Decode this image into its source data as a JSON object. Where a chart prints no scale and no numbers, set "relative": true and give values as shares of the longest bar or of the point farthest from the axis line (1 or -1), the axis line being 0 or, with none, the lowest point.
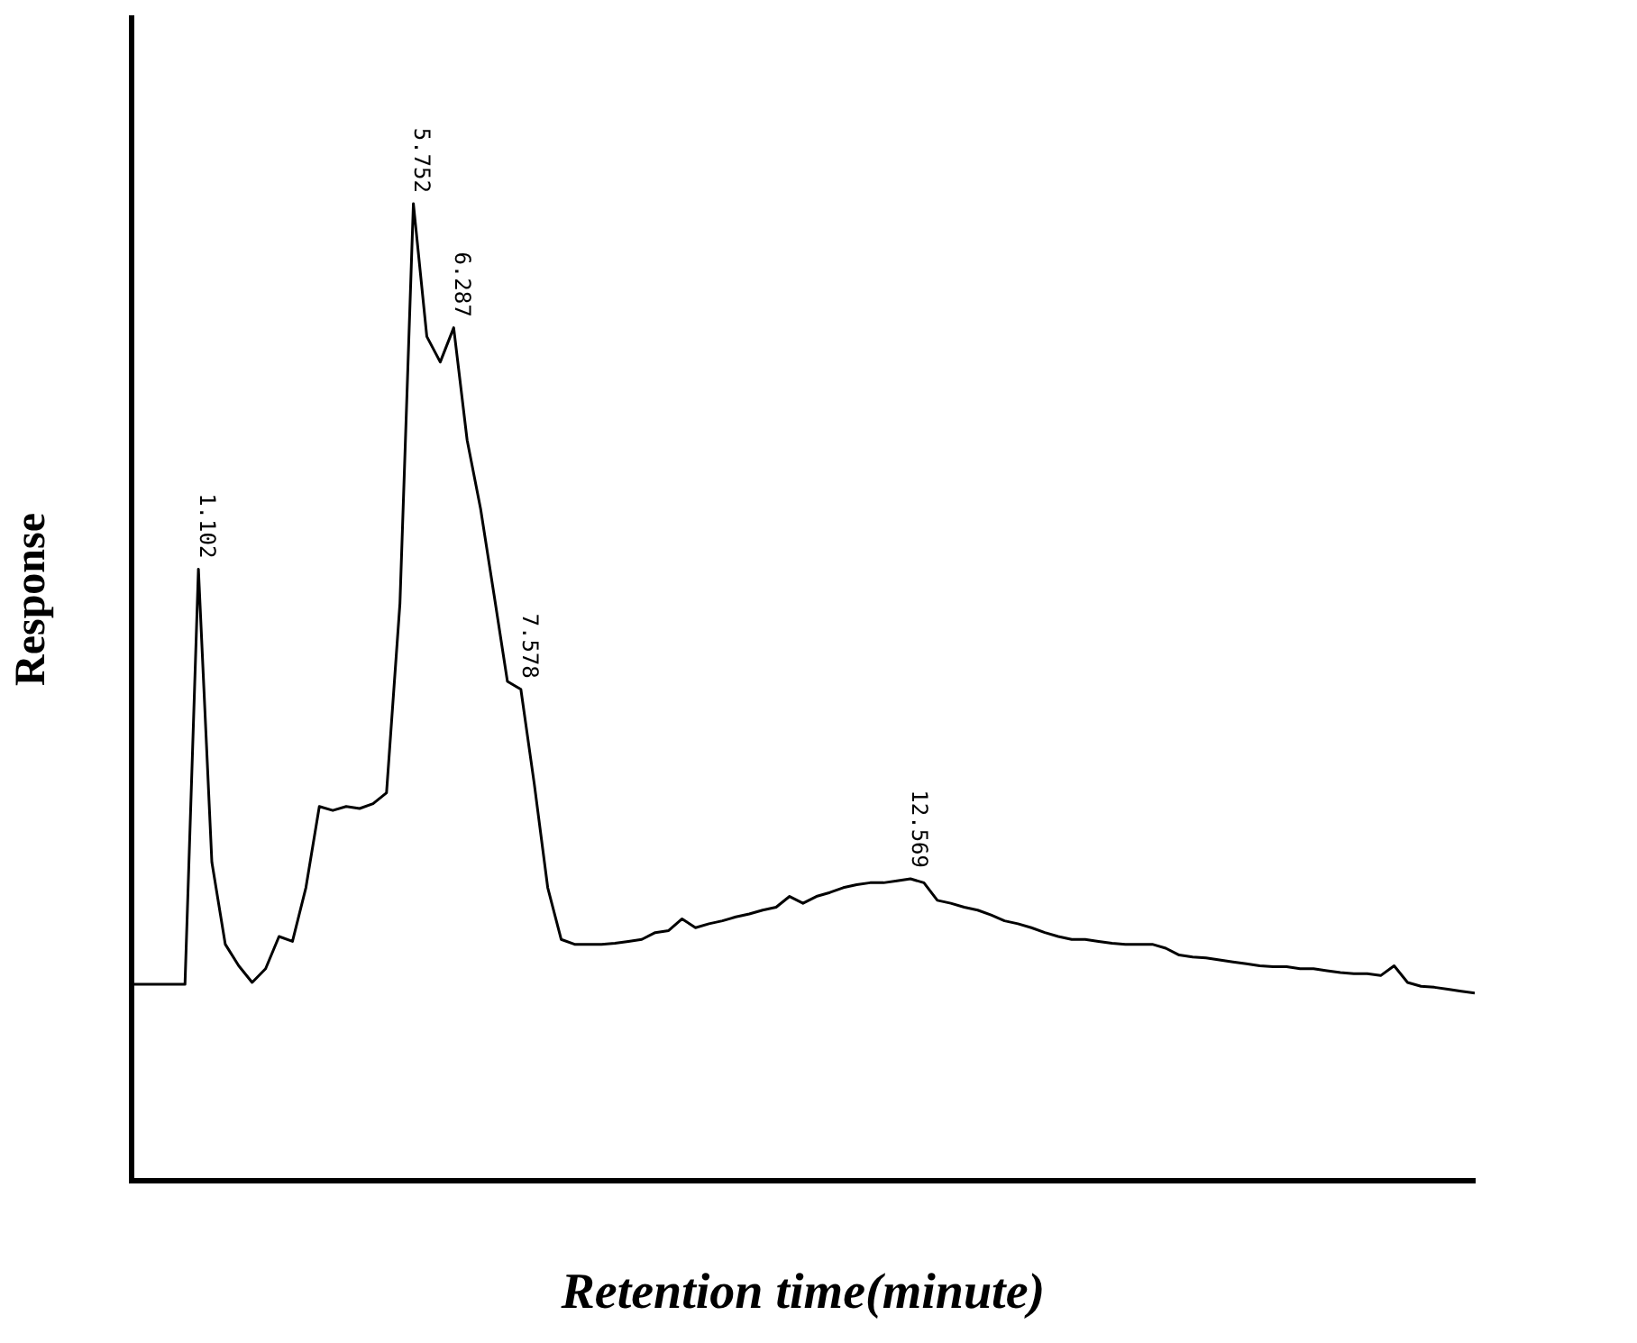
{
  "chart_data": {
    "type": "line",
    "relative": true,
    "xlabel": "Retention time(minute)",
    "ylabel": "Response",
    "color": "#000000",
    "marker": "none",
    "grid": false,
    "legend": false,
    "categories": [
      null,
      null,
      null,
      null,
      null,
      null,
      null,
      null,
      null,
      null,
      null,
      null,
      null,
      null,
      null,
      null,
      null,
      null,
      null,
      null,
      null,
      null,
      null,
      null,
      null,
      null,
      null,
      null,
      null,
      null,
      null,
      null,
      null,
      null,
      null,
      null,
      null,
      null,
      null,
      null,
      null,
      null,
      null,
      null,
      null,
      null,
      null,
      null,
      null,
      null,
      null,
      null,
      null,
      null,
      null,
      null,
      null,
      null,
      null,
      null,
      null,
      null,
      null,
      null,
      null,
      null,
      null,
      null,
      null,
      null,
      null,
      null,
      null,
      null,
      null,
      null,
      null,
      null,
      null,
      null,
      null,
      null,
      null,
      null,
      null,
      null,
      null,
      null,
      null,
      null,
      null,
      null,
      null,
      null,
      null,
      null,
      null,
      null,
      null,
      null,
      null
    ],
    "values": [
      0.201,
      0.201,
      0.201,
      0.201,
      0.201,
      0.626,
      0.326,
      0.242,
      0.22,
      0.203,
      0.217,
      0.25,
      0.245,
      0.3,
      0.383,
      0.379,
      0.383,
      0.381,
      0.386,
      0.397,
      0.591,
      1,
      0.864,
      0.838,
      0.873,
      0.758,
      0.688,
      0.6,
      0.511,
      0.503,
      0.406,
      0.3,
      0.247,
      0.242,
      0.242,
      0.242,
      0.243,
      0.245,
      0.247,
      0.254,
      0.256,
      0.268,
      0.259,
      0.263,
      0.266,
      0.27,
      0.273,
      0.277,
      0.28,
      0.291,
      0.284,
      0.291,
      0.295,
      0.3,
      0.303,
      0.305,
      0.305,
      0.307,
      0.309,
      0.305,
      0.287,
      0.284,
      0.28,
      0.277,
      0.272,
      0.266,
      0.263,
      0.259,
      0.254,
      0.25,
      0.247,
      0.247,
      0.245,
      0.243,
      0.242,
      0.242,
      0.242,
      0.238,
      0.231,
      0.229,
      0.228,
      0.226,
      0.224,
      0.222,
      0.22,
      0.219,
      0.219,
      0.217,
      0.217,
      0.215,
      0.213,
      0.212,
      0.212,
      0.21,
      0.22,
      0.203,
      0.199,
      0.198,
      0.196,
      0.194,
      0.192
    ],
    "annotations": [
      {
        "text": "1.102",
        "y": 0.626
      },
      {
        "text": "5.752",
        "y": 1
      },
      {
        "text": "6.287",
        "y": 0.873
      },
      {
        "text": "7.578",
        "y": 0.503
      },
      {
        "text": "12.569",
        "y": 0.309
      }
    ]
  }
}
